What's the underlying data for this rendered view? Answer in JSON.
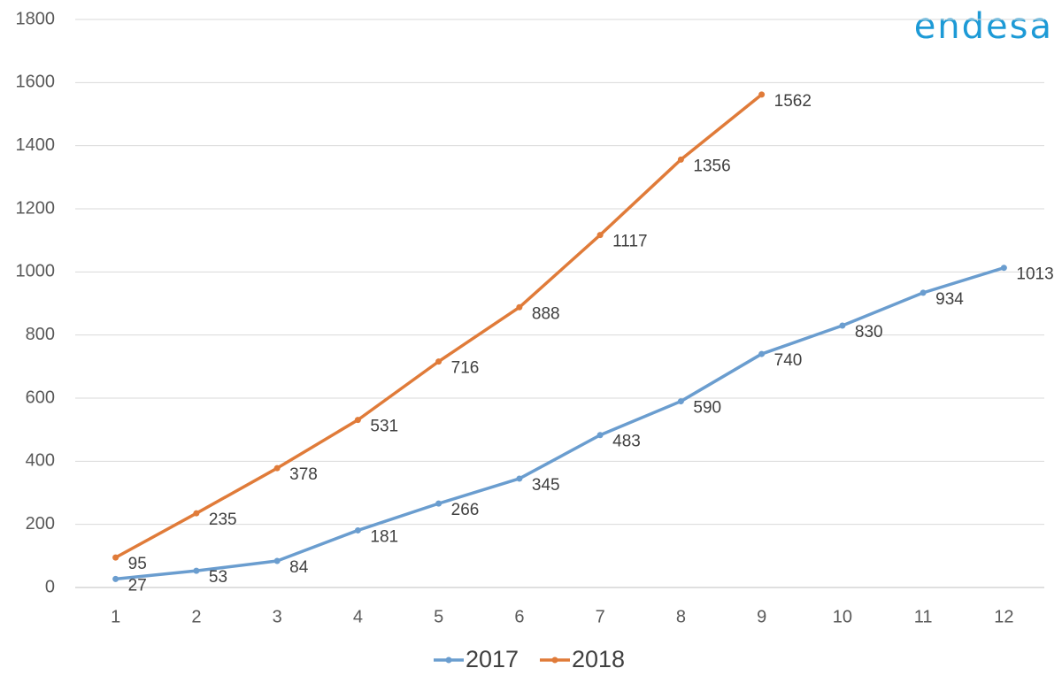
{
  "chart_data": {
    "type": "line",
    "logo": "endesa",
    "categories": [
      "1",
      "2",
      "3",
      "4",
      "5",
      "6",
      "7",
      "8",
      "9",
      "10",
      "11",
      "12"
    ],
    "series": [
      {
        "name": "2017",
        "color": "#6a9dcf",
        "values": [
          27,
          53,
          84,
          181,
          266,
          345,
          483,
          590,
          740,
          830,
          934,
          1013
        ]
      },
      {
        "name": "2018",
        "color": "#e07b39",
        "values": [
          95,
          235,
          378,
          531,
          716,
          888,
          1117,
          1356,
          1562,
          null,
          null,
          null
        ]
      }
    ],
    "ylim": [
      0,
      1800
    ],
    "yticks": [
      0,
      200,
      400,
      600,
      800,
      1000,
      1200,
      1400,
      1600,
      1800
    ],
    "grid": true,
    "legend": "bottom"
  }
}
